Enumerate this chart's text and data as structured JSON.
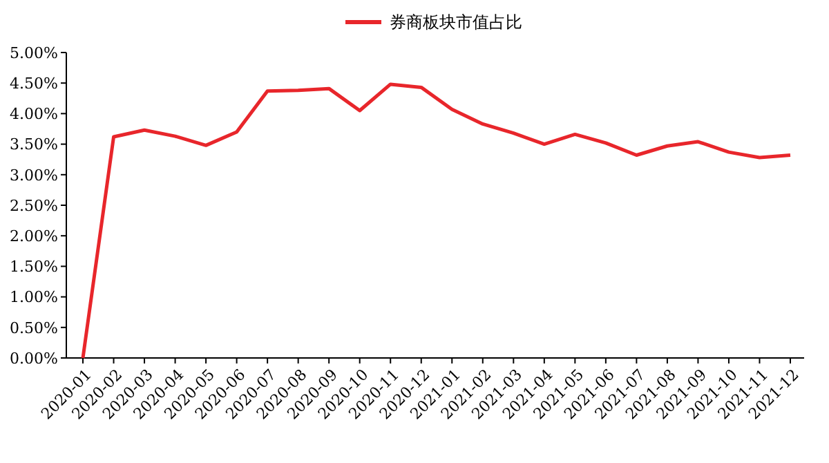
{
  "chart_data": {
    "type": "line",
    "categories": [
      "2020-01",
      "2020-02",
      "2020-03",
      "2020-04",
      "2020-05",
      "2020-06",
      "2020-07",
      "2020-08",
      "2020-09",
      "2020-10",
      "2020-11",
      "2020-12",
      "2021-01",
      "2021-02",
      "2021-03",
      "2021-04",
      "2021-05",
      "2021-06",
      "2021-07",
      "2021-08",
      "2021-09",
      "2021-10",
      "2021-11",
      "2021-12"
    ],
    "series": [
      {
        "name": "券商板块市值占比",
        "color": "#e8262b",
        "values": [
          0,
          3.62,
          3.73,
          3.63,
          3.48,
          3.7,
          4.37,
          4.38,
          4.41,
          4.05,
          4.48,
          4.43,
          4.07,
          3.83,
          3.68,
          3.5,
          3.66,
          3.52,
          3.32,
          3.47,
          3.54,
          3.37,
          3.28,
          3.32
        ]
      }
    ],
    "ylim": [
      0,
      5
    ],
    "yticks": [
      {
        "value": 0,
        "label": "0.00%"
      },
      {
        "value": 0.5,
        "label": "0.50%"
      },
      {
        "value": 1,
        "label": "1.00%"
      },
      {
        "value": 1.5,
        "label": "1.50%"
      },
      {
        "value": 2,
        "label": "2.00%"
      },
      {
        "value": 2.5,
        "label": "2.50%"
      },
      {
        "value": 3,
        "label": "3.00%"
      },
      {
        "value": 3.5,
        "label": "3.50%"
      },
      {
        "value": 4,
        "label": "4.00%"
      },
      {
        "value": 4.5,
        "label": "4.50%"
      },
      {
        "value": 5,
        "label": "5.00%"
      }
    ],
    "legend": "top",
    "marker": "none",
    "line_style": "solid"
  }
}
